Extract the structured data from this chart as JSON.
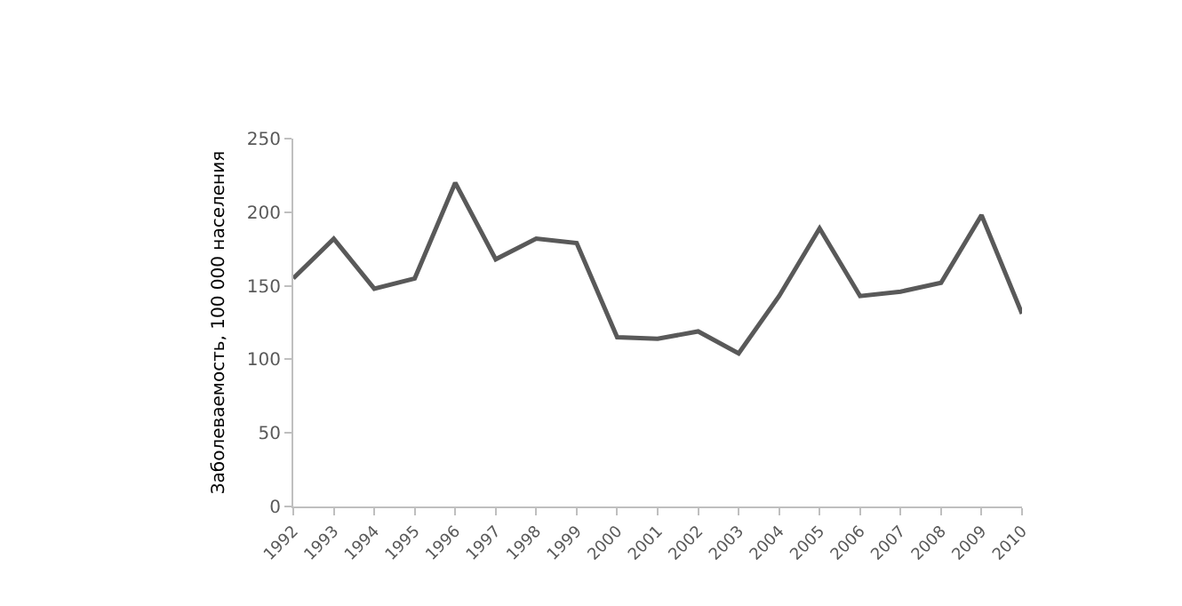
{
  "chart_data": {
    "type": "line",
    "ylabel": "Заболеваемость, 100 000 населения",
    "categories": [
      "1992",
      "1993",
      "1994",
      "1995",
      "1996",
      "1997",
      "1998",
      "1999",
      "2000",
      "2001",
      "2002",
      "2003",
      "2004",
      "2005",
      "2006",
      "2007",
      "2008",
      "2009",
      "2010"
    ],
    "series": [
      {
        "color": "#595959",
        "values": [
          155,
          182,
          148,
          155,
          220,
          168,
          182,
          179,
          115,
          114,
          119,
          104,
          143,
          189,
          143,
          146,
          152,
          198,
          131
        ]
      }
    ],
    "ylim": [
      0,
      250
    ],
    "yticks": [
      0,
      50,
      100,
      150,
      200,
      250
    ],
    "marker": "none",
    "line_style": "solid"
  }
}
